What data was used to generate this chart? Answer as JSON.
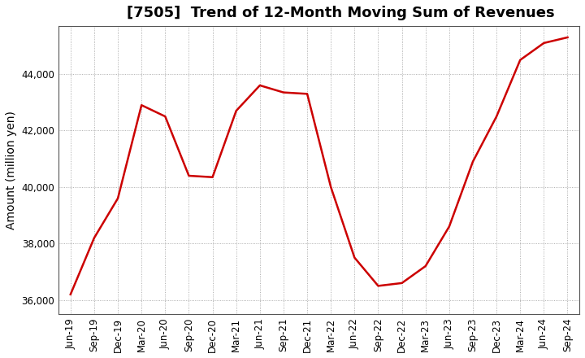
{
  "title": "[7505]  Trend of 12-Month Moving Sum of Revenues",
  "ylabel": "Amount (million yen)",
  "background_color": "#ffffff",
  "line_color": "#cc0000",
  "grid_color": "#999999",
  "title_fontsize": 13,
  "axis_label_fontsize": 10,
  "tick_fontsize": 8.5,
  "labels": [
    "Jun-19",
    "Sep-19",
    "Dec-19",
    "Mar-20",
    "Jun-20",
    "Sep-20",
    "Dec-20",
    "Mar-21",
    "Jun-21",
    "Sep-21",
    "Dec-21",
    "Mar-22",
    "Jun-22",
    "Sep-22",
    "Dec-22",
    "Mar-23",
    "Jun-23",
    "Sep-23",
    "Dec-23",
    "Mar-24",
    "Jun-24",
    "Sep-24"
  ],
  "values": [
    36200,
    38200,
    39600,
    42900,
    42500,
    40400,
    40350,
    42700,
    43600,
    43350,
    43300,
    40000,
    37500,
    36500,
    36600,
    37200,
    38600,
    40900,
    42500,
    44500,
    45100,
    45300
  ],
  "ylim": [
    35500,
    45700
  ],
  "yticks": [
    36000,
    38000,
    40000,
    42000,
    44000
  ]
}
